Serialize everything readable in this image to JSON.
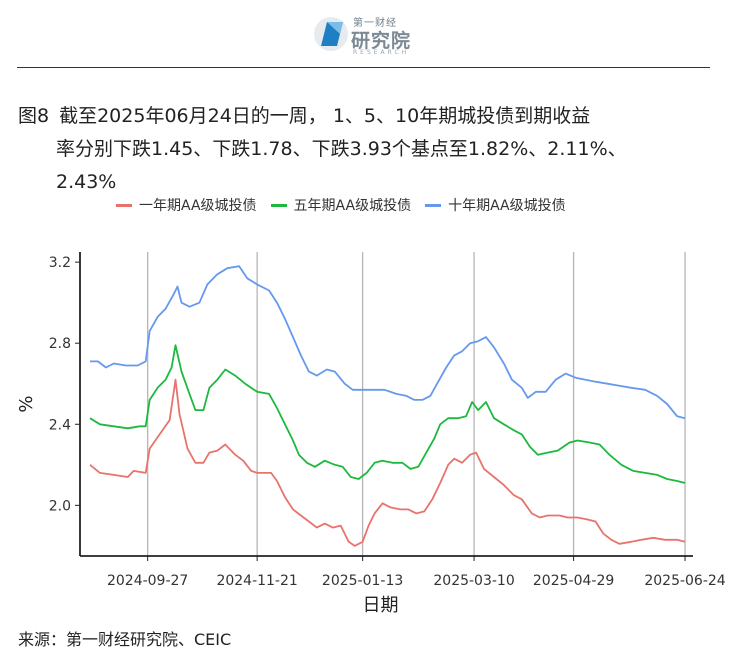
{
  "header": {
    "logo_top": "第一财经",
    "logo_main": "研究院",
    "logo_sub": "RESEARCH"
  },
  "caption": {
    "figure_no": "图8",
    "line1": "截至2025年06月24日的一周， 1、5、10年期城投债到期收益",
    "line2": "率分别下跌1.45、下跌1.78、下跌3.93个基点至1.82%、2.11%、",
    "line3": "2.43%"
  },
  "source": "来源：第一财经研究院、CEIC",
  "colors": {
    "one_year": "#e8736c",
    "five_year": "#1db93f",
    "ten_year": "#6699ee",
    "grid": "#b5b5b5",
    "axis": "#222222"
  },
  "chart_data": {
    "type": "line",
    "title": "",
    "xlabel": "日期",
    "ylabel": "%",
    "ylim": [
      1.75,
      3.25
    ],
    "yticks": [
      "2.0",
      "2.4",
      "2.8",
      "3.2"
    ],
    "xlim": [
      "2024-08-24",
      "2025-06-28"
    ],
    "xticks": [
      "2024-09-27",
      "2024-11-21",
      "2025-01-13",
      "2025-03-10",
      "2025-04-29",
      "2025-06-24"
    ],
    "grid": "vertical",
    "legend": "top",
    "series": [
      {
        "name": "一年期AA级城投债",
        "color_key": "one_year",
        "points": [
          [
            "2024-08-29",
            2.2
          ],
          [
            "2024-09-03",
            2.16
          ],
          [
            "2024-09-10",
            2.15
          ],
          [
            "2024-09-17",
            2.14
          ],
          [
            "2024-09-20",
            2.17
          ],
          [
            "2024-09-26",
            2.16
          ],
          [
            "2024-09-28",
            2.28
          ],
          [
            "2024-10-03",
            2.35
          ],
          [
            "2024-10-08",
            2.42
          ],
          [
            "2024-10-11",
            2.62
          ],
          [
            "2024-10-13",
            2.45
          ],
          [
            "2024-10-17",
            2.28
          ],
          [
            "2024-10-21",
            2.21
          ],
          [
            "2024-10-25",
            2.21
          ],
          [
            "2024-10-28",
            2.26
          ],
          [
            "2024-11-01",
            2.27
          ],
          [
            "2024-11-05",
            2.3
          ],
          [
            "2024-11-10",
            2.25
          ],
          [
            "2024-11-14",
            2.22
          ],
          [
            "2024-11-18",
            2.17
          ],
          [
            "2024-11-21",
            2.16
          ],
          [
            "2024-11-28",
            2.16
          ],
          [
            "2024-12-01",
            2.12
          ],
          [
            "2024-12-05",
            2.04
          ],
          [
            "2024-12-09",
            1.98
          ],
          [
            "2024-12-13",
            1.95
          ],
          [
            "2024-12-17",
            1.92
          ],
          [
            "2024-12-21",
            1.89
          ],
          [
            "2024-12-25",
            1.91
          ],
          [
            "2024-12-29",
            1.89
          ],
          [
            "2025-01-02",
            1.9
          ],
          [
            "2025-01-06",
            1.82
          ],
          [
            "2025-01-09",
            1.8
          ],
          [
            "2025-01-13",
            1.82
          ],
          [
            "2025-01-16",
            1.9
          ],
          [
            "2025-01-19",
            1.96
          ],
          [
            "2025-01-23",
            2.01
          ],
          [
            "2025-01-27",
            1.99
          ],
          [
            "2025-02-01",
            1.98
          ],
          [
            "2025-02-05",
            1.98
          ],
          [
            "2025-02-09",
            1.96
          ],
          [
            "2025-02-13",
            1.97
          ],
          [
            "2025-02-17",
            2.03
          ],
          [
            "2025-02-21",
            2.11
          ],
          [
            "2025-02-25",
            2.2
          ],
          [
            "2025-02-28",
            2.23
          ],
          [
            "2025-03-04",
            2.21
          ],
          [
            "2025-03-08",
            2.25
          ],
          [
            "2025-03-11",
            2.26
          ],
          [
            "2025-03-15",
            2.18
          ],
          [
            "2025-03-20",
            2.14
          ],
          [
            "2025-03-25",
            2.1
          ],
          [
            "2025-03-30",
            2.05
          ],
          [
            "2025-04-03",
            2.03
          ],
          [
            "2025-04-08",
            1.96
          ],
          [
            "2025-04-12",
            1.94
          ],
          [
            "2025-04-16",
            1.95
          ],
          [
            "2025-04-22",
            1.95
          ],
          [
            "2025-04-26",
            1.94
          ],
          [
            "2025-05-01",
            1.94
          ],
          [
            "2025-05-06",
            1.93
          ],
          [
            "2025-05-10",
            1.92
          ],
          [
            "2025-05-14",
            1.86
          ],
          [
            "2025-05-18",
            1.83
          ],
          [
            "2025-05-22",
            1.81
          ],
          [
            "2025-05-28",
            1.82
          ],
          [
            "2025-06-02",
            1.83
          ],
          [
            "2025-06-08",
            1.84
          ],
          [
            "2025-06-14",
            1.83
          ],
          [
            "2025-06-20",
            1.83
          ],
          [
            "2025-06-24",
            1.82
          ]
        ]
      },
      {
        "name": "五年期AA级城投债",
        "color_key": "five_year",
        "points": [
          [
            "2024-08-29",
            2.43
          ],
          [
            "2024-09-03",
            2.4
          ],
          [
            "2024-09-10",
            2.39
          ],
          [
            "2024-09-17",
            2.38
          ],
          [
            "2024-09-23",
            2.39
          ],
          [
            "2024-09-26",
            2.39
          ],
          [
            "2024-09-28",
            2.52
          ],
          [
            "2024-10-02",
            2.58
          ],
          [
            "2024-10-06",
            2.62
          ],
          [
            "2024-10-09",
            2.68
          ],
          [
            "2024-10-11",
            2.79
          ],
          [
            "2024-10-14",
            2.66
          ],
          [
            "2024-10-18",
            2.55
          ],
          [
            "2024-10-21",
            2.47
          ],
          [
            "2024-10-25",
            2.47
          ],
          [
            "2024-10-28",
            2.58
          ],
          [
            "2024-11-01",
            2.62
          ],
          [
            "2024-11-05",
            2.67
          ],
          [
            "2024-11-10",
            2.64
          ],
          [
            "2024-11-15",
            2.6
          ],
          [
            "2024-11-21",
            2.56
          ],
          [
            "2024-11-27",
            2.55
          ],
          [
            "2024-12-01",
            2.48
          ],
          [
            "2024-12-05",
            2.4
          ],
          [
            "2024-12-09",
            2.32
          ],
          [
            "2024-12-12",
            2.25
          ],
          [
            "2024-12-16",
            2.21
          ],
          [
            "2024-12-20",
            2.19
          ],
          [
            "2024-12-25",
            2.22
          ],
          [
            "2024-12-30",
            2.2
          ],
          [
            "2025-01-03",
            2.19
          ],
          [
            "2025-01-07",
            2.14
          ],
          [
            "2025-01-11",
            2.13
          ],
          [
            "2025-01-15",
            2.16
          ],
          [
            "2025-01-19",
            2.21
          ],
          [
            "2025-01-23",
            2.22
          ],
          [
            "2025-01-28",
            2.21
          ],
          [
            "2025-02-02",
            2.21
          ],
          [
            "2025-02-06",
            2.18
          ],
          [
            "2025-02-10",
            2.19
          ],
          [
            "2025-02-14",
            2.26
          ],
          [
            "2025-02-18",
            2.33
          ],
          [
            "2025-02-21",
            2.4
          ],
          [
            "2025-02-25",
            2.43
          ],
          [
            "2025-03-02",
            2.43
          ],
          [
            "2025-03-06",
            2.44
          ],
          [
            "2025-03-09",
            2.51
          ],
          [
            "2025-03-12",
            2.47
          ],
          [
            "2025-03-16",
            2.51
          ],
          [
            "2025-03-20",
            2.43
          ],
          [
            "2025-03-25",
            2.4
          ],
          [
            "2025-03-30",
            2.37
          ],
          [
            "2025-04-03",
            2.35
          ],
          [
            "2025-04-07",
            2.29
          ],
          [
            "2025-04-11",
            2.25
          ],
          [
            "2025-04-16",
            2.26
          ],
          [
            "2025-04-21",
            2.27
          ],
          [
            "2025-04-27",
            2.31
          ],
          [
            "2025-05-01",
            2.32
          ],
          [
            "2025-05-07",
            2.31
          ],
          [
            "2025-05-12",
            2.3
          ],
          [
            "2025-05-17",
            2.25
          ],
          [
            "2025-05-23",
            2.2
          ],
          [
            "2025-05-29",
            2.17
          ],
          [
            "2025-06-04",
            2.16
          ],
          [
            "2025-06-10",
            2.15
          ],
          [
            "2025-06-15",
            2.13
          ],
          [
            "2025-06-20",
            2.12
          ],
          [
            "2025-06-24",
            2.11
          ]
        ]
      },
      {
        "name": "十年期AA级城投债",
        "color_key": "ten_year",
        "points": [
          [
            "2024-08-29",
            2.71
          ],
          [
            "2024-09-02",
            2.71
          ],
          [
            "2024-09-06",
            2.68
          ],
          [
            "2024-09-10",
            2.7
          ],
          [
            "2024-09-16",
            2.69
          ],
          [
            "2024-09-22",
            2.69
          ],
          [
            "2024-09-26",
            2.71
          ],
          [
            "2024-09-28",
            2.86
          ],
          [
            "2024-10-02",
            2.93
          ],
          [
            "2024-10-06",
            2.97
          ],
          [
            "2024-10-10",
            3.04
          ],
          [
            "2024-10-12",
            3.08
          ],
          [
            "2024-10-14",
            3.0
          ],
          [
            "2024-10-18",
            2.98
          ],
          [
            "2024-10-23",
            3.0
          ],
          [
            "2024-10-27",
            3.09
          ],
          [
            "2024-11-01",
            3.14
          ],
          [
            "2024-11-06",
            3.17
          ],
          [
            "2024-11-12",
            3.18
          ],
          [
            "2024-11-16",
            3.12
          ],
          [
            "2024-11-21",
            3.09
          ],
          [
            "2024-11-27",
            3.06
          ],
          [
            "2024-12-01",
            3.0
          ],
          [
            "2024-12-05",
            2.92
          ],
          [
            "2024-12-09",
            2.83
          ],
          [
            "2024-12-13",
            2.74
          ],
          [
            "2024-12-17",
            2.66
          ],
          [
            "2024-12-21",
            2.64
          ],
          [
            "2024-12-26",
            2.67
          ],
          [
            "2024-12-30",
            2.66
          ],
          [
            "2025-01-04",
            2.6
          ],
          [
            "2025-01-08",
            2.57
          ],
          [
            "2025-01-13",
            2.57
          ],
          [
            "2025-01-19",
            2.57
          ],
          [
            "2025-01-24",
            2.57
          ],
          [
            "2025-01-30",
            2.55
          ],
          [
            "2025-02-04",
            2.54
          ],
          [
            "2025-02-08",
            2.52
          ],
          [
            "2025-02-12",
            2.52
          ],
          [
            "2025-02-16",
            2.54
          ],
          [
            "2025-02-20",
            2.61
          ],
          [
            "2025-02-24",
            2.68
          ],
          [
            "2025-02-28",
            2.74
          ],
          [
            "2025-03-04",
            2.76
          ],
          [
            "2025-03-08",
            2.8
          ],
          [
            "2025-03-12",
            2.81
          ],
          [
            "2025-03-16",
            2.83
          ],
          [
            "2025-03-20",
            2.78
          ],
          [
            "2025-03-25",
            2.7
          ],
          [
            "2025-03-29",
            2.62
          ],
          [
            "2025-04-03",
            2.58
          ],
          [
            "2025-04-06",
            2.53
          ],
          [
            "2025-04-10",
            2.56
          ],
          [
            "2025-04-15",
            2.56
          ],
          [
            "2025-04-20",
            2.62
          ],
          [
            "2025-04-25",
            2.65
          ],
          [
            "2025-04-30",
            2.63
          ],
          [
            "2025-05-05",
            2.62
          ],
          [
            "2025-05-10",
            2.61
          ],
          [
            "2025-05-16",
            2.6
          ],
          [
            "2025-05-22",
            2.59
          ],
          [
            "2025-05-28",
            2.58
          ],
          [
            "2025-06-04",
            2.57
          ],
          [
            "2025-06-10",
            2.54
          ],
          [
            "2025-06-15",
            2.5
          ],
          [
            "2025-06-20",
            2.44
          ],
          [
            "2025-06-24",
            2.43
          ]
        ]
      }
    ]
  }
}
